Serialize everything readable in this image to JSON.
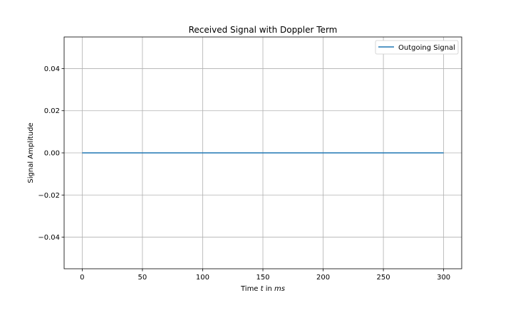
{
  "chart_data": {
    "type": "line",
    "title": "Received Signal with Doppler Term",
    "xlabel": {
      "prefix": "Time ",
      "var": "t",
      "mid": " in ",
      "unit": "ms"
    },
    "ylabel": "Signal Amplitude",
    "xlim": [
      -15,
      315
    ],
    "ylim": [
      -0.055,
      0.055
    ],
    "xticks": [
      0,
      50,
      100,
      150,
      200,
      250,
      300
    ],
    "xtick_labels": [
      "0",
      "50",
      "100",
      "150",
      "200",
      "250",
      "300"
    ],
    "yticks": [
      0.04,
      0.02,
      0.0,
      -0.02,
      -0.04
    ],
    "ytick_labels": [
      "0.04",
      "0.02",
      "0.00",
      "−0.02",
      "−0.04"
    ],
    "grid": true,
    "legend_position": "top-right",
    "series": [
      {
        "name": "Outgoing Signal",
        "color": "#1f77b4",
        "x": [
          0,
          300
        ],
        "y": [
          0.0,
          0.0
        ]
      }
    ]
  }
}
